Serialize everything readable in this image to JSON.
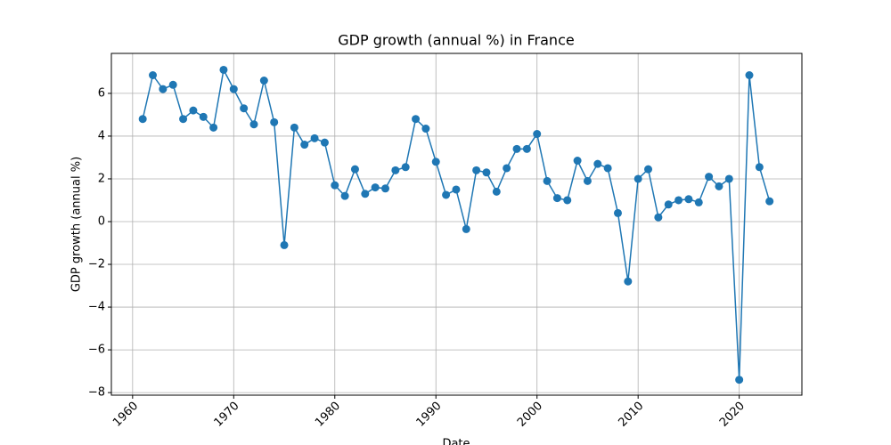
{
  "chart_data": {
    "type": "line",
    "title": "GDP growth (annual %) in France",
    "xlabel": "Date",
    "ylabel": "GDP growth (annual %)",
    "x": [
      1961,
      1962,
      1963,
      1964,
      1965,
      1966,
      1967,
      1968,
      1969,
      1970,
      1971,
      1972,
      1973,
      1974,
      1975,
      1976,
      1977,
      1978,
      1979,
      1980,
      1981,
      1982,
      1983,
      1984,
      1985,
      1986,
      1987,
      1988,
      1989,
      1990,
      1991,
      1992,
      1993,
      1994,
      1995,
      1996,
      1997,
      1998,
      1999,
      2000,
      2001,
      2002,
      2003,
      2004,
      2005,
      2006,
      2007,
      2008,
      2009,
      2010,
      2011,
      2012,
      2013,
      2014,
      2015,
      2016,
      2017,
      2018,
      2019,
      2020,
      2021,
      2022,
      2023
    ],
    "series": [
      {
        "name": "GDP growth (annual %)",
        "color": "#1f77b4",
        "values": [
          4.8,
          6.85,
          6.2,
          6.4,
          4.8,
          5.2,
          4.9,
          4.4,
          7.1,
          6.2,
          5.3,
          4.55,
          6.6,
          4.65,
          -1.1,
          4.4,
          3.6,
          3.9,
          3.7,
          1.7,
          1.2,
          2.45,
          1.3,
          1.6,
          1.55,
          2.4,
          2.55,
          4.8,
          4.35,
          2.8,
          1.25,
          1.5,
          -0.35,
          2.4,
          2.3,
          1.4,
          2.5,
          3.4,
          3.4,
          4.1,
          1.9,
          1.1,
          1.0,
          2.85,
          1.9,
          2.7,
          2.5,
          0.4,
          -2.8,
          2.0,
          2.45,
          0.2,
          0.8,
          1.0,
          1.05,
          0.9,
          2.1,
          1.65,
          2.0,
          -7.4,
          6.85,
          2.55,
          0.95
        ]
      }
    ],
    "xlim": [
      1957.9,
      2026.2
    ],
    "xticks": [
      1960,
      1970,
      1980,
      1990,
      2000,
      2010,
      2020
    ],
    "ylim": [
      -8.12,
      7.87
    ],
    "yticks": [
      {
        "value": -8,
        "label": "−8"
      },
      {
        "value": -6,
        "label": "−6"
      },
      {
        "value": -4,
        "label": "−4"
      },
      {
        "value": -2,
        "label": "−2"
      },
      0,
      2,
      4,
      6
    ],
    "grid": true
  }
}
